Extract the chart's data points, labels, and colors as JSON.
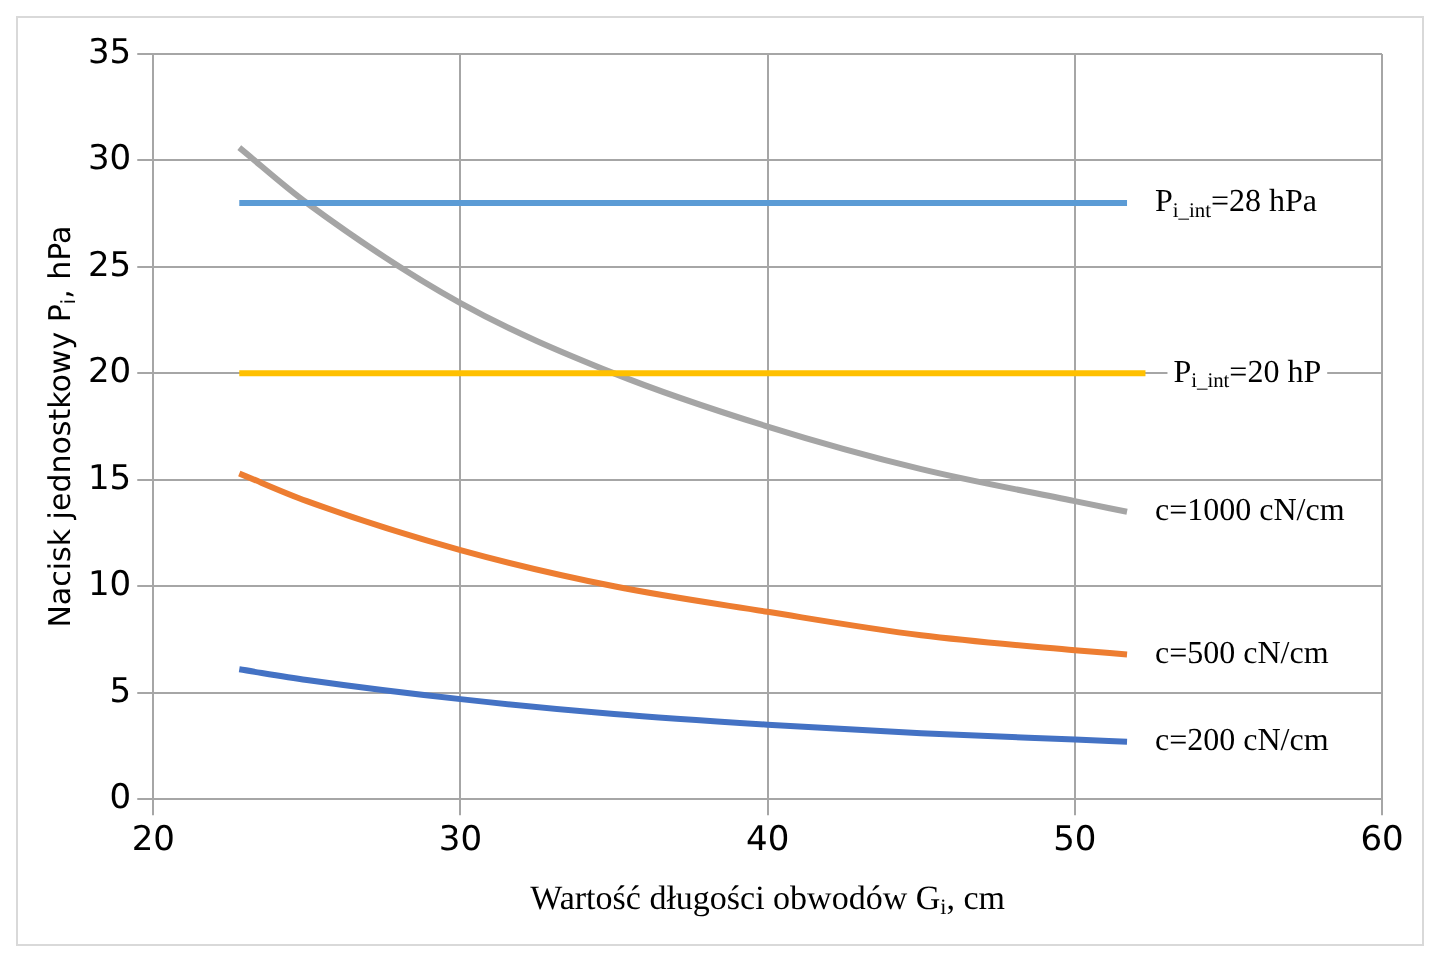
{
  "chart_data": {
    "type": "line",
    "xlabel": "Wartość długości obwodów G$_{i}$, cm",
    "ylabel": "Nacisk jednostkowy P$_{i}$, hPa",
    "series": [
      {
        "name": "P$_{i_int}$=28 hPa",
        "color": "#5b9bd5",
        "x": [
          22.8,
          51.7
        ],
        "values": [
          28,
          28
        ]
      },
      {
        "name": "P$_{i_int}$=20 hP",
        "color": "#ffc000",
        "x": [
          22.8,
          52.3
        ],
        "values": [
          20,
          20
        ]
      },
      {
        "name": "c=1000 cN/cm",
        "color": "#a5a5a5",
        "x": [
          22.8,
          25,
          30,
          35,
          40,
          45,
          50,
          51.7
        ],
        "values": [
          30.6,
          28,
          23.3,
          20,
          17.5,
          15.5,
          14,
          13.5
        ]
      },
      {
        "name": "c=500 cN/cm",
        "color": "#ed7d31",
        "x": [
          22.8,
          25,
          30,
          35,
          40,
          45,
          50,
          51.7
        ],
        "values": [
          15.3,
          14,
          11.7,
          10,
          8.8,
          7.7,
          7,
          6.8
        ]
      },
      {
        "name": "c=200 cN/cm",
        "color": "#4472c4",
        "x": [
          22.8,
          25,
          30,
          35,
          40,
          45,
          50,
          51.7
        ],
        "values": [
          6.1,
          5.6,
          4.7,
          4,
          3.5,
          3.1,
          2.8,
          2.7
        ]
      }
    ],
    "xlim": [
      20,
      60
    ],
    "xticks": [
      20,
      30,
      40,
      50,
      60
    ],
    "ylim": [
      0,
      35
    ],
    "yticks": [
      0,
      5,
      10,
      15,
      20,
      25,
      30,
      35
    ],
    "grid": true,
    "legend": false,
    "marker": "none",
    "line_style": "solid"
  }
}
